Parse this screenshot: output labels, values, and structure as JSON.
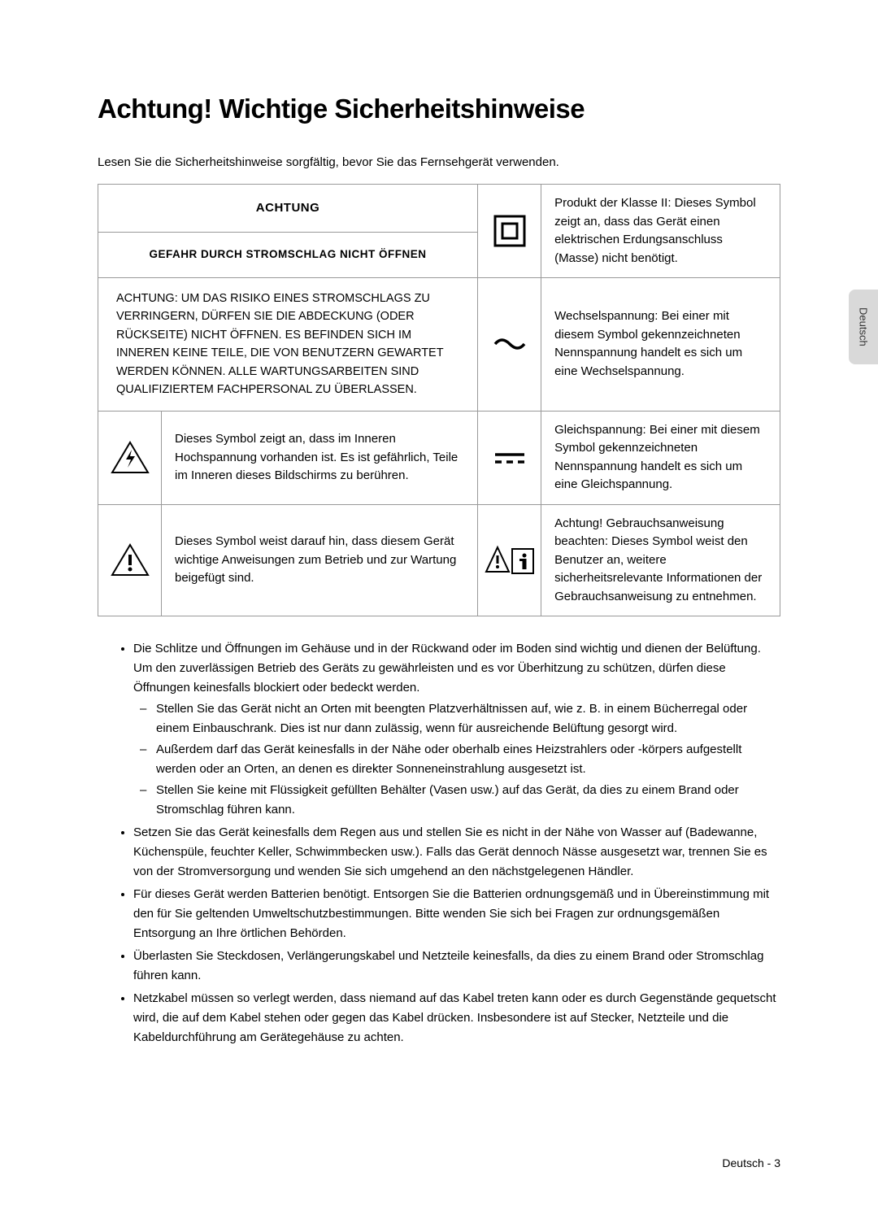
{
  "title": "Achtung! Wichtige Sicherheitshinweise",
  "intro": "Lesen Sie die Sicherheitshinweise sorgfältig, bevor Sie das Fernsehgerät verwenden.",
  "headers": {
    "achtung": "ACHTUNG",
    "gefahr": "GEFAHR DURCH STROMSCHLAG NICHT ÖFFNEN"
  },
  "warning": "ACHTUNG: UM DAS RISIKO EINES STROMSCHLAGS ZU VERRINGERN, DÜRFEN SIE DIE ABDECKUNG (ODER RÜCKSEITE) NICHT ÖFFNEN. ES BEFINDEN SICH IM INNEREN KEINE TEILE, DIE VON BENUTZERN GEWARTET WERDEN KÖNNEN. ALLE WARTUNGSARBEITEN SIND QUALIFIZIERTEM FACHPERSONAL ZU ÜBERLASSEN.",
  "symbols": {
    "class2": "Produkt der Klasse II: Dieses Symbol zeigt an, dass das Gerät einen elektrischen Erdungsanschluss (Masse) nicht benötigt.",
    "ac": "Wechselspannung: Bei einer mit diesem Symbol gekennzeichneten Nennspannung handelt es sich um eine Wechselspannung.",
    "dc": "Gleichspannung: Bei einer mit diesem Symbol gekennzeichneten Nennspannung handelt es sich um eine Gleichspannung.",
    "shock": "Dieses Symbol zeigt an, dass im Inneren Hochspannung vorhanden ist. Es ist gefährlich, Teile im Inneren dieses Bildschirms zu berühren.",
    "exclaim": "Dieses Symbol weist darauf hin, dass diesem Gerät wichtige Anweisungen zum Betrieb und zur Wartung beigefügt sind.",
    "manual": "Achtung! Gebrauchsanweisung beachten: Dieses Symbol weist den Benutzer an, weitere sicherheitsrelevante Informationen der Gebrauchsanweisung zu entnehmen."
  },
  "bullets": [
    {
      "text": "Die Schlitze und Öffnungen im Gehäuse und in der Rückwand oder im Boden sind wichtig und dienen der Belüftung. Um den zuverlässigen Betrieb des Geräts zu gewährleisten und es vor Überhitzung zu schützen, dürfen diese Öffnungen keinesfalls blockiert oder bedeckt werden.",
      "sub": [
        "Stellen Sie das Gerät nicht an Orten mit beengten Platzverhältnissen auf, wie z. B. in einem Bücherregal oder einem Einbauschrank. Dies ist nur dann zulässig, wenn für ausreichende Belüftung gesorgt wird.",
        "Außerdem darf das Gerät keinesfalls in der Nähe oder oberhalb eines Heizstrahlers oder -körpers aufgestellt werden oder an Orten, an denen es direkter Sonneneinstrahlung ausgesetzt ist.",
        "Stellen Sie keine mit Flüssigkeit gefüllten Behälter (Vasen usw.) auf das Gerät, da dies zu einem Brand oder Stromschlag führen kann."
      ]
    },
    {
      "text": "Setzen Sie das Gerät keinesfalls dem Regen aus und stellen Sie es nicht in der Nähe von Wasser auf (Badewanne, Küchenspüle, feuchter Keller, Schwimmbecken usw.). Falls das Gerät dennoch Nässe ausgesetzt war, trennen Sie es von der Stromversorgung und wenden Sie sich umgehend an den nächstgelegenen Händler."
    },
    {
      "text": "Für dieses Gerät werden Batterien benötigt. Entsorgen Sie die Batterien ordnungsgemäß und in Übereinstimmung mit den für Sie geltenden Umweltschutzbestimmungen. Bitte wenden Sie sich bei Fragen zur ordnungsgemäßen Entsorgung an Ihre örtlichen Behörden."
    },
    {
      "text": "Überlasten Sie Steckdosen, Verlängerungskabel und Netzteile keinesfalls, da dies zu einem Brand oder Stromschlag führen kann."
    },
    {
      "text": "Netzkabel müssen so verlegt werden, dass niemand auf das Kabel treten kann oder es durch Gegenstände gequetscht wird, die auf dem Kabel stehen oder gegen das Kabel drücken. Insbesondere ist auf Stecker, Netzteile und die Kabeldurchführung am Gerätegehäuse zu achten."
    }
  ],
  "sideTab": "Deutsch",
  "footer": "Deutsch - 3"
}
